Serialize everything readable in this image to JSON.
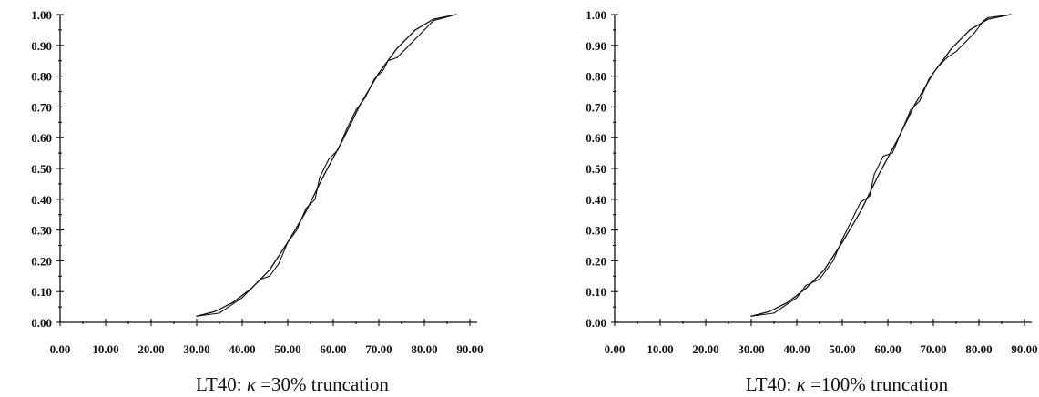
{
  "chart_data": [
    {
      "type": "line",
      "caption_prefix": "LT40:",
      "caption_symbol": "κ",
      "caption_suffix": "=30% truncation",
      "xlim": [
        0,
        90
      ],
      "ylim": [
        0,
        1
      ],
      "xticks": [
        "0.00",
        "10.00",
        "20.00",
        "30.00",
        "40.00",
        "50.00",
        "60.00",
        "70.00",
        "80.00",
        "90.00"
      ],
      "yticks": [
        "0.00",
        "0.10",
        "0.20",
        "0.30",
        "0.40",
        "0.50",
        "0.60",
        "0.70",
        "0.80",
        "0.90",
        "1.00"
      ],
      "grid": false,
      "series": [
        {
          "style": "smooth",
          "x": [
            30,
            34,
            38,
            42,
            46,
            50,
            54,
            58,
            62,
            66,
            70,
            74,
            78,
            82,
            87
          ],
          "y": [
            0.02,
            0.035,
            0.065,
            0.11,
            0.17,
            0.26,
            0.36,
            0.48,
            0.59,
            0.71,
            0.81,
            0.89,
            0.95,
            0.985,
            1.0
          ]
        },
        {
          "style": "empirical",
          "x": [
            30,
            35,
            37,
            40,
            42,
            44,
            46,
            48,
            50,
            52,
            54,
            56,
            57,
            59,
            61,
            63,
            65,
            67,
            69,
            71,
            72,
            74,
            76,
            78,
            80,
            82,
            87
          ],
          "y": [
            0.02,
            0.03,
            0.05,
            0.08,
            0.11,
            0.14,
            0.15,
            0.19,
            0.26,
            0.3,
            0.37,
            0.4,
            0.47,
            0.53,
            0.56,
            0.63,
            0.69,
            0.73,
            0.79,
            0.82,
            0.85,
            0.86,
            0.89,
            0.92,
            0.95,
            0.98,
            1.0
          ]
        }
      ]
    },
    {
      "type": "line",
      "caption_prefix": "LT40:",
      "caption_symbol": "κ",
      "caption_suffix": "=100% truncation",
      "xlim": [
        0,
        90
      ],
      "ylim": [
        0,
        1
      ],
      "xticks": [
        "0.00",
        "10.00",
        "20.00",
        "30.00",
        "40.00",
        "50.00",
        "60.00",
        "70.00",
        "80.00",
        "90.00"
      ],
      "yticks": [
        "0.00",
        "0.10",
        "0.20",
        "0.30",
        "0.40",
        "0.50",
        "0.60",
        "0.70",
        "0.80",
        "0.90",
        "1.00"
      ],
      "grid": false,
      "series": [
        {
          "style": "smooth",
          "x": [
            30,
            34,
            38,
            42,
            46,
            50,
            54,
            58,
            62,
            66,
            70,
            74,
            78,
            82,
            87
          ],
          "y": [
            0.02,
            0.035,
            0.065,
            0.11,
            0.17,
            0.26,
            0.36,
            0.48,
            0.59,
            0.71,
            0.81,
            0.89,
            0.95,
            0.985,
            1.0
          ]
        },
        {
          "style": "empirical",
          "x": [
            30,
            35,
            38,
            40,
            42,
            45,
            48,
            50,
            52,
            54,
            56,
            57,
            59,
            61,
            63,
            65,
            67,
            69,
            71,
            73,
            75,
            77,
            79,
            81,
            82,
            87
          ],
          "y": [
            0.02,
            0.03,
            0.06,
            0.08,
            0.12,
            0.14,
            0.2,
            0.27,
            0.33,
            0.39,
            0.41,
            0.48,
            0.54,
            0.55,
            0.62,
            0.69,
            0.72,
            0.79,
            0.83,
            0.86,
            0.88,
            0.91,
            0.94,
            0.98,
            0.99,
            1.0
          ]
        }
      ]
    }
  ]
}
